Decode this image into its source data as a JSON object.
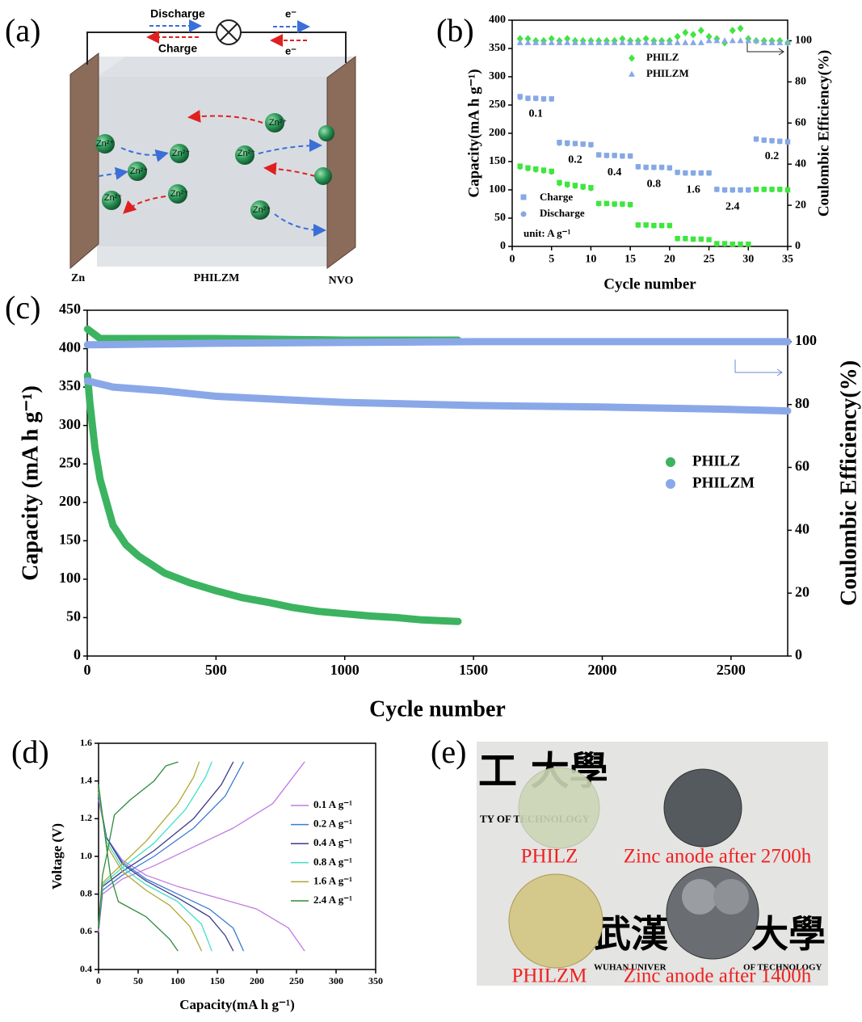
{
  "panel_labels": [
    "(a)",
    "(b)",
    "(c)",
    "(d)",
    "(e)"
  ],
  "diagram": {
    "discharge": "Discharge",
    "charge": "Charge",
    "electron": "e⁻",
    "ion": "Zn²⁺",
    "anode": "Zn",
    "electrolyte": "PHILZM",
    "cathode": "NVO"
  },
  "photo": {
    "captions": [
      "PHILZ",
      "Zinc anode after 2700h",
      "PHILZM",
      "Zinc anode after 1400h"
    ],
    "background_text": [
      "工 大學",
      "TY OF TECHNOLOGY",
      "武漢",
      "大學",
      "WUHAN UNIVER",
      "OF TECHNOLOGY"
    ]
  },
  "chart_data": [
    {
      "type": "scatter",
      "xlabel": "Cycle number",
      "ylabel": "Capacity(mA h g⁻¹)",
      "y2label": "Coulombic Efficiency(%)",
      "xlim": [
        0,
        35
      ],
      "xticks": [
        0,
        5,
        10,
        15,
        20,
        25,
        30,
        35
      ],
      "ylim": [
        0,
        400
      ],
      "yticks": [
        0,
        50,
        100,
        150,
        200,
        250,
        300,
        350,
        400
      ],
      "y2lim": [
        0,
        110
      ],
      "y2ticks": [
        0,
        20,
        40,
        60,
        80,
        100
      ],
      "x": [
        1,
        2,
        3,
        4,
        5,
        6,
        7,
        8,
        9,
        10,
        11,
        12,
        13,
        14,
        15,
        16,
        17,
        18,
        19,
        20,
        21,
        22,
        23,
        24,
        25,
        26,
        27,
        28,
        29,
        30,
        31,
        32,
        33,
        34,
        35
      ],
      "series": [
        {
          "name": "PHILZ",
          "color": "#3ee63e",
          "efficiency_marker": "diamond",
          "values": [
            142,
            139,
            137,
            135,
            133,
            113,
            110,
            108,
            106,
            104,
            76,
            76,
            75,
            75,
            74,
            38,
            38,
            37,
            37,
            37,
            14,
            14,
            13,
            13,
            12,
            5,
            5,
            4,
            4,
            4,
            101,
            101,
            101,
            101,
            100
          ],
          "discharge": [
            140,
            137,
            135,
            133,
            131,
            111,
            108,
            106,
            104,
            102,
            75,
            75,
            74,
            74,
            73,
            37,
            37,
            36,
            36,
            36,
            13,
            13,
            12,
            12,
            12,
            4,
            4,
            4,
            4,
            4,
            100,
            100,
            100,
            100,
            99
          ],
          "efficiency": [
            101,
            101,
            100,
            100,
            101,
            100,
            101,
            100,
            100,
            100,
            100,
            100,
            100,
            101,
            100,
            100,
            101,
            100,
            100,
            100,
            102,
            104,
            103,
            105,
            102,
            101,
            99,
            105,
            106,
            101,
            100,
            100,
            100,
            100,
            99
          ]
        },
        {
          "name": "PHILZM",
          "color": "#86a8e6",
          "efficiency_marker": "triangle",
          "values": [
            265,
            262,
            262,
            261,
            261,
            184,
            183,
            182,
            181,
            180,
            162,
            161,
            161,
            160,
            160,
            141,
            140,
            140,
            140,
            139,
            131,
            130,
            130,
            130,
            130,
            101,
            100,
            100,
            100,
            100,
            190,
            188,
            187,
            186,
            185
          ],
          "discharge": [
            263,
            261,
            261,
            260,
            260,
            182,
            181,
            181,
            180,
            179,
            161,
            160,
            160,
            159,
            159,
            140,
            139,
            139,
            139,
            138,
            130,
            129,
            129,
            129,
            129,
            100,
            99,
            99,
            99,
            99,
            189,
            187,
            186,
            185,
            184
          ],
          "efficiency": [
            99,
            99,
            99,
            99,
            99,
            99,
            99,
            99,
            99,
            99,
            99,
            99,
            99,
            99,
            99,
            99,
            99,
            99,
            99,
            99,
            99,
            99,
            99,
            99,
            100,
            100,
            100,
            100,
            100,
            100,
            100,
            99,
            99,
            99,
            99
          ]
        }
      ],
      "marker_legend": {
        "charge": "Charge",
        "discharge": "Discharge"
      },
      "unit_note": "unit:  A g⁻¹",
      "rate_labels": [
        "0.1",
        "0.2",
        "0.4",
        "0.8",
        "1.6",
        "2.4",
        "0.2"
      ]
    },
    {
      "type": "line",
      "xlabel": "Cycle number",
      "ylabel": "Capacity (mA h g⁻¹)",
      "y2label": "Coulombic Efficiency(%)",
      "xlim": [
        0,
        2720
      ],
      "xticks": [
        0,
        500,
        1000,
        1500,
        2000,
        2500
      ],
      "ylim": [
        0,
        450
      ],
      "yticks": [
        0,
        50,
        100,
        150,
        200,
        250,
        300,
        350,
        400,
        450
      ],
      "y2lim": [
        0,
        110
      ],
      "y2ticks": [
        0,
        20,
        40,
        60,
        80,
        100
      ],
      "line_width": 9,
      "series": [
        {
          "name": "PHILZ",
          "color": "#3cb360",
          "x": [
            1,
            10,
            30,
            50,
            100,
            150,
            200,
            300,
            400,
            500,
            600,
            700,
            800,
            900,
            1000,
            1100,
            1200,
            1300,
            1440
          ],
          "values": [
            365,
            330,
            270,
            230,
            170,
            145,
            130,
            108,
            95,
            85,
            76,
            70,
            63,
            58,
            55,
            52,
            50,
            47,
            45
          ],
          "efficiency_x": [
            1,
            50,
            500,
            1000,
            1440
          ],
          "efficiency": [
            104,
            101,
            101,
            100.5,
            100.5
          ]
        },
        {
          "name": "PHILZM",
          "color": "#8aa8e8",
          "x": [
            1,
            100,
            300,
            500,
            800,
            1000,
            1500,
            2000,
            2500,
            2720
          ],
          "values": [
            358,
            350,
            345,
            338,
            333,
            330,
            326,
            324,
            321,
            319
          ],
          "efficiency_x": [
            1,
            500,
            1500,
            2720
          ],
          "efficiency": [
            99,
            99.5,
            100,
            100
          ]
        }
      ]
    },
    {
      "type": "line",
      "xlabel": "Capacity(mA h g⁻¹)",
      "ylabel": "Voltage (V)",
      "xlim": [
        0,
        350
      ],
      "xticks": [
        0,
        50,
        100,
        150,
        200,
        250,
        300,
        350
      ],
      "ylim": [
        0.4,
        1.6
      ],
      "yticks": [
        0.4,
        0.6,
        0.8,
        {
          "value": 1,
          "label": "1.0"
        },
        1.2,
        1.4,
        1.6
      ],
      "line_width": 1.3,
      "series": [
        {
          "name": "0.1 A g⁻¹",
          "color": "#c07be0",
          "x": [
            0,
            10,
            30,
            60,
            100,
            150,
            200,
            240,
            260
          ],
          "values": [
            1.3,
            1.1,
            0.98,
            0.9,
            0.84,
            0.78,
            0.72,
            0.62,
            0.5
          ],
          "charge_x": [
            0,
            5,
            30,
            70,
            120,
            170,
            220,
            260
          ],
          "charge": [
            0.6,
            0.8,
            0.88,
            0.95,
            1.05,
            1.15,
            1.28,
            1.5
          ]
        },
        {
          "name": "0.2 A g⁻¹",
          "color": "#3a7bd5",
          "x": [
            0,
            10,
            30,
            60,
            100,
            140,
            170,
            183
          ],
          "values": [
            1.32,
            1.1,
            0.97,
            0.88,
            0.8,
            0.72,
            0.62,
            0.5
          ],
          "charge_x": [
            0,
            5,
            30,
            70,
            120,
            160,
            183
          ],
          "charge": [
            0.62,
            0.82,
            0.9,
            1.0,
            1.15,
            1.32,
            1.5
          ]
        },
        {
          "name": "0.4 A g⁻¹",
          "color": "#3b3b8a",
          "x": [
            0,
            10,
            30,
            60,
            100,
            140,
            160,
            170
          ],
          "values": [
            1.33,
            1.1,
            0.96,
            0.87,
            0.78,
            0.68,
            0.58,
            0.5
          ],
          "charge_x": [
            0,
            5,
            30,
            70,
            120,
            155,
            170
          ],
          "charge": [
            0.62,
            0.84,
            0.92,
            1.03,
            1.2,
            1.38,
            1.5
          ]
        },
        {
          "name": "0.8 A g⁻¹",
          "color": "#40e0c8",
          "x": [
            0,
            10,
            30,
            60,
            100,
            130,
            143
          ],
          "values": [
            1.34,
            1.08,
            0.94,
            0.85,
            0.76,
            0.64,
            0.5
          ],
          "charge_x": [
            0,
            5,
            30,
            70,
            110,
            135,
            143
          ],
          "charge": [
            0.63,
            0.85,
            0.94,
            1.07,
            1.25,
            1.42,
            1.5
          ]
        },
        {
          "name": "1.6 A g⁻¹",
          "color": "#b0a830",
          "x": [
            0,
            10,
            30,
            60,
            90,
            115,
            130
          ],
          "values": [
            1.36,
            1.06,
            0.92,
            0.82,
            0.74,
            0.63,
            0.5
          ],
          "charge_x": [
            0,
            5,
            30,
            60,
            100,
            120,
            127
          ],
          "charge": [
            0.64,
            0.86,
            0.96,
            1.08,
            1.28,
            1.42,
            1.5
          ]
        },
        {
          "name": "2.4 A g⁻¹",
          "color": "#2e8b3a",
          "x": [
            0,
            10,
            15,
            25,
            60,
            90,
            100
          ],
          "values": [
            1.38,
            1.05,
            0.9,
            0.76,
            0.68,
            0.56,
            0.5
          ],
          "charge_x": [
            0,
            5,
            10,
            20,
            40,
            70,
            85,
            100
          ],
          "charge": [
            0.62,
            0.9,
            1.0,
            1.22,
            1.3,
            1.4,
            1.48,
            1.5
          ]
        }
      ]
    }
  ]
}
